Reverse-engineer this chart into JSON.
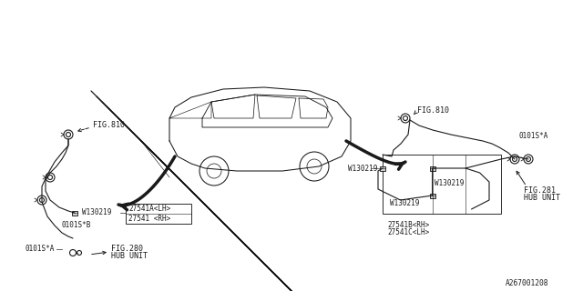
{
  "bg_color": "#ffffff",
  "line_color": "#1a1a1a",
  "text_color": "#1a1a1a",
  "diagram_code": "A267001208",
  "labels": {
    "fig810_left": "FIG.810",
    "fig810_right": "FIG.810",
    "fig280_1": "FIG.280",
    "fig280_2": "HUB UNIT",
    "fig281_1": "FIG.281",
    "fig281_2": "HUB UNIT",
    "w130219": "W130219",
    "part_front_rh": "27541 <RH>",
    "part_front_lh": "27541A<LH>",
    "part_rear_rh": "27541B<RH>",
    "part_rear_lh": "27541C<LH>",
    "callout_0101SA": "0101S*A",
    "callout_0101SB": "0101S*B",
    "callout_0101SA_r": "0101S*A"
  },
  "font_size": 6.0,
  "lw_wire": 0.8,
  "lw_car": 0.75,
  "lw_arrow_big": 2.5
}
